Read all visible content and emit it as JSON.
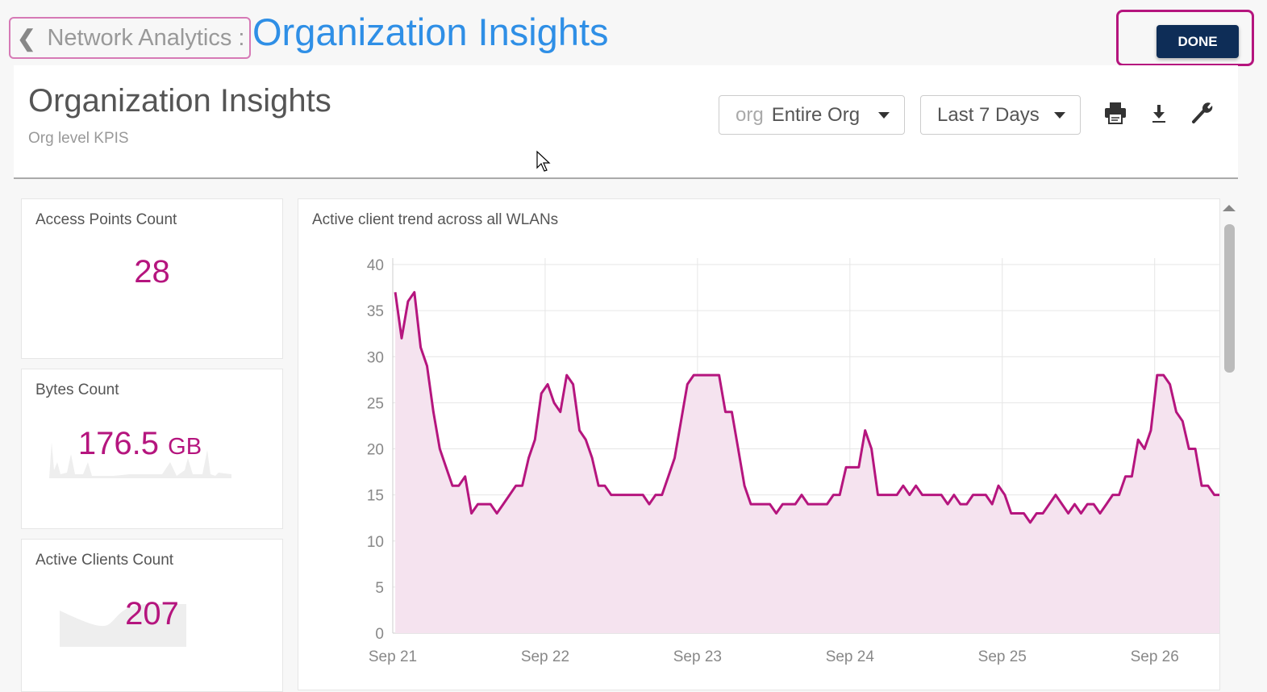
{
  "topbar": {
    "back_label": "Network Analytics :",
    "title": "Organization Insights",
    "done_label": "DONE"
  },
  "header": {
    "title": "Organization Insights",
    "subtitle": "Org level KPIS",
    "org_select": {
      "prefix": "org",
      "value": "Entire Org"
    },
    "range_select": {
      "value": "Last 7 Days"
    },
    "icons": [
      "print-icon",
      "download-icon",
      "wrench-icon"
    ]
  },
  "cards": [
    {
      "label": "Access Points Count",
      "value": "28"
    },
    {
      "label": "Bytes Count",
      "value": "176.5",
      "unit": "GB"
    },
    {
      "label": "Active Clients Count",
      "value": "207"
    }
  ],
  "colors": {
    "accent": "#b5157e",
    "link": "#2f8fe6",
    "done": "#0e2d57"
  },
  "chart_data": {
    "type": "area",
    "title": "Active client trend across all WLANs",
    "xlabel": "",
    "ylabel": "",
    "x_unit": "hours since Sep 21 00:00",
    "x_ticks": [
      {
        "hour": 0,
        "label": "Sep 21"
      },
      {
        "hour": 24,
        "label": "Sep 22"
      },
      {
        "hour": 48,
        "label": "Sep 23"
      },
      {
        "hour": 72,
        "label": "Sep 24"
      },
      {
        "hour": 96,
        "label": "Sep 25"
      },
      {
        "hour": 120,
        "label": "Sep 26"
      }
    ],
    "y_ticks": [
      0,
      5,
      10,
      15,
      20,
      25,
      30,
      35,
      40
    ],
    "xlim": [
      0,
      130.2
    ],
    "ylim": [
      0,
      40
    ],
    "grid": true,
    "series": [
      {
        "name": "Active clients",
        "start_hour": 0.4,
        "step_hours": 1,
        "values": [
          37,
          32,
          36,
          37,
          31,
          29,
          24,
          20,
          18,
          16,
          16,
          17,
          13,
          14,
          14,
          14,
          13,
          14,
          15,
          16,
          16,
          19,
          21,
          26,
          27,
          25,
          24,
          28,
          27,
          22,
          21,
          19,
          16,
          16,
          15,
          15,
          15,
          15,
          15,
          15,
          14,
          15,
          15,
          17,
          19,
          23,
          27,
          28,
          28,
          28,
          28,
          28,
          24,
          24,
          20,
          16,
          14,
          14,
          14,
          14,
          13,
          14,
          14,
          14,
          15,
          14,
          14,
          14,
          14,
          15,
          15,
          18,
          18,
          18,
          22,
          20,
          15,
          15,
          15,
          15,
          16,
          15,
          16,
          15,
          15,
          15,
          15,
          14,
          15,
          14,
          14,
          15,
          15,
          15,
          14,
          16,
          15,
          13,
          13,
          13,
          12,
          13,
          13,
          14,
          15,
          14,
          13,
          14,
          13,
          14,
          14,
          13,
          14,
          15,
          15,
          17,
          17,
          21,
          20,
          22,
          28,
          28,
          27,
          24,
          23,
          20,
          20,
          16,
          16,
          15,
          15
        ]
      }
    ]
  }
}
